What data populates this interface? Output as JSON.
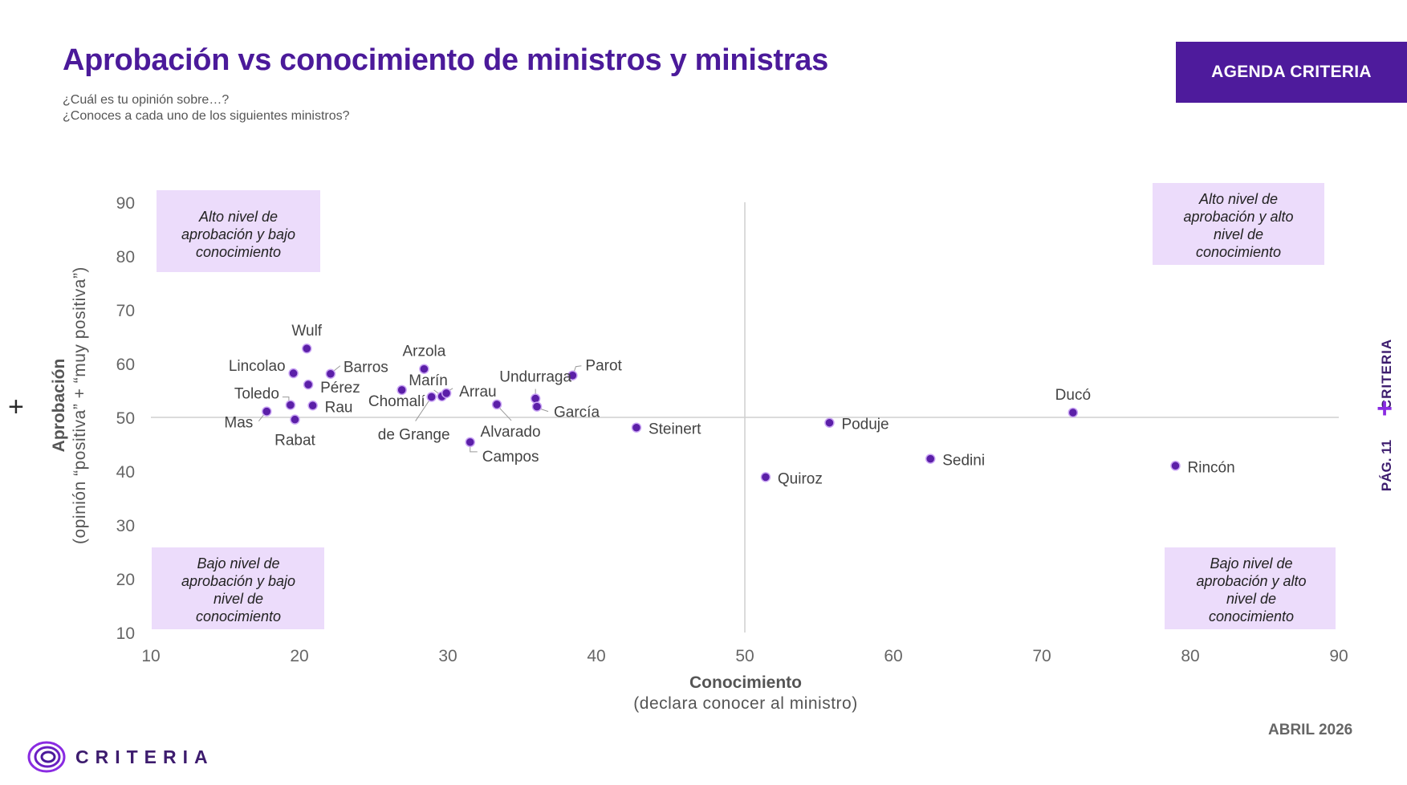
{
  "header": {
    "title": "Aprobación vs conocimiento de ministros y ministras",
    "subtitle_line1": "¿Cuál es tu opinión sobre…?",
    "subtitle_line2": "¿Conoces a cada uno de los siguientes ministros?",
    "brand_box": "AGENDA CRITERIA"
  },
  "side": {
    "left_plus": "+",
    "right_brand": "CRITERIA",
    "right_plus": "+",
    "page": "PÁG. 11"
  },
  "footer": {
    "date": "ABRIL 2026",
    "logo_text": "CRITERIA"
  },
  "colors": {
    "accent": "#4e1b9c",
    "point": "#5b1fa8",
    "quadrant_bg": "#ecdcfb"
  },
  "chart_data": {
    "type": "scatter",
    "xlabel": "Conocimiento",
    "xlabel_sub": "(declara conocer al ministro)",
    "ylabel": "Aprobación",
    "ylabel_sub": "(opinión “positiva” + “muy positiva”)",
    "xlim": [
      10,
      90
    ],
    "ylim": [
      10,
      90
    ],
    "xticks": [
      10,
      20,
      30,
      40,
      50,
      60,
      70,
      80,
      90
    ],
    "yticks": [
      10,
      20,
      30,
      40,
      50,
      60,
      70,
      80,
      90
    ],
    "reference_lines": {
      "x": 50,
      "y": 50
    },
    "quadrants": [
      {
        "id": "top-left",
        "text": [
          "Alto nivel de",
          "aprobación y bajo",
          "conocimiento"
        ]
      },
      {
        "id": "top-right",
        "text": [
          "Alto nivel de",
          "aprobación y alto",
          "nivel de",
          "conocimiento"
        ]
      },
      {
        "id": "bottom-left",
        "text": [
          "Bajo nivel de",
          "aprobación y bajo",
          "nivel de",
          "conocimiento"
        ]
      },
      {
        "id": "bottom-right",
        "text": [
          "Bajo nivel de",
          "aprobación y alto",
          "nivel de",
          "conocimiento"
        ]
      }
    ],
    "points": [
      {
        "name": "Wulf",
        "x": 20.5,
        "y": 62.8
      },
      {
        "name": "Lincolao",
        "x": 19.6,
        "y": 58.2
      },
      {
        "name": "Barros",
        "x": 22.1,
        "y": 58.1
      },
      {
        "name": "Pérez",
        "x": 20.6,
        "y": 56.1
      },
      {
        "name": "Toledo",
        "x": 19.4,
        "y": 52.3
      },
      {
        "name": "Rau",
        "x": 20.9,
        "y": 52.2
      },
      {
        "name": "Mas",
        "x": 17.8,
        "y": 51.1
      },
      {
        "name": "Rabat",
        "x": 19.7,
        "y": 49.6
      },
      {
        "name": "Arzola",
        "x": 28.4,
        "y": 59.0
      },
      {
        "name": "Chomalí",
        "x": 26.9,
        "y": 55.1
      },
      {
        "name": "Marín",
        "x": 29.6,
        "y": 53.9
      },
      {
        "name": "Arrau",
        "x": 29.9,
        "y": 54.5
      },
      {
        "name": "de Grange",
        "x": 28.9,
        "y": 53.8
      },
      {
        "name": "Alvarado",
        "x": 33.3,
        "y": 52.4
      },
      {
        "name": "Campos",
        "x": 31.5,
        "y": 45.4
      },
      {
        "name": "Undurraga",
        "x": 35.9,
        "y": 53.5
      },
      {
        "name": "García",
        "x": 36.0,
        "y": 52.0
      },
      {
        "name": "Parot",
        "x": 38.4,
        "y": 57.8
      },
      {
        "name": "Steinert",
        "x": 42.7,
        "y": 48.1
      },
      {
        "name": "Quiroz",
        "x": 51.4,
        "y": 38.9
      },
      {
        "name": "Poduje",
        "x": 55.7,
        "y": 49.0
      },
      {
        "name": "Sedini",
        "x": 62.5,
        "y": 42.3
      },
      {
        "name": "Ducó",
        "x": 72.1,
        "y": 50.9
      },
      {
        "name": "Rincón",
        "x": 79.0,
        "y": 41.0
      }
    ]
  }
}
